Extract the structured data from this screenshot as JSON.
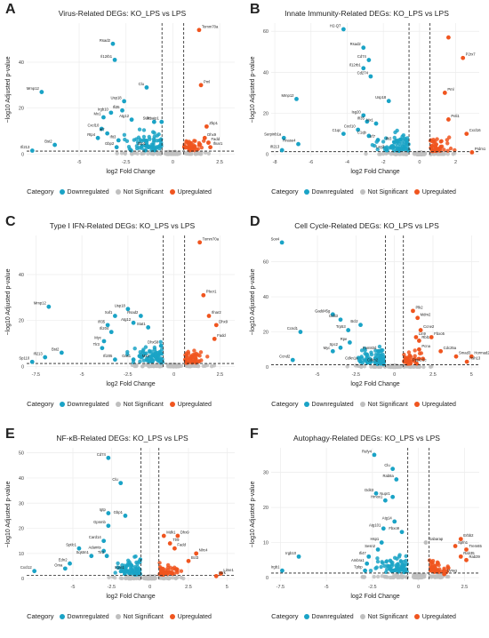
{
  "colors": {
    "down": "#1aa3c6",
    "ns": "#bfbfbf",
    "up": "#f0551f"
  },
  "legend": {
    "title": "Category",
    "items": [
      "Downregulated",
      "Not Significant",
      "Upregulated"
    ]
  },
  "chart_data": [
    {
      "label": "A",
      "type": "scatter",
      "title": "Virus-Related DEGs: KO_LPS vs LPS",
      "xlabel": "log2 Fold Change",
      "ylabel": "−log10 Adjusted p-value",
      "xlim": [
        -7.8,
        3.3
      ],
      "ylim": [
        -1,
        57
      ],
      "xticks": [
        -5,
        -2.5,
        0,
        2.5
      ],
      "yticks": [
        0,
        20,
        40
      ],
      "thresholds": {
        "x": [
          -0.58,
          0.58
        ],
        "y": 1.3
      },
      "labeled_points": [
        {
          "x": 1.4,
          "y": 54,
          "label": "Tomm70a",
          "cat": "up"
        },
        {
          "x": -3.2,
          "y": 48,
          "label": "Rsad2",
          "cat": "down"
        },
        {
          "x": -3.1,
          "y": 41,
          "label": "Il12rb1",
          "cat": "down"
        },
        {
          "x": 1.5,
          "y": 30,
          "label": "Pml",
          "cat": "up"
        },
        {
          "x": -7.0,
          "y": 27,
          "label": "Mmp12",
          "cat": "down"
        },
        {
          "x": -1.4,
          "y": 29,
          "label": "Clu",
          "cat": "down"
        },
        {
          "x": -2.6,
          "y": 23,
          "label": "Usp18",
          "cat": "down"
        },
        {
          "x": -2.7,
          "y": 19,
          "label": "Ifi35",
          "cat": "down"
        },
        {
          "x": -3.3,
          "y": 18,
          "label": "Irgb10",
          "cat": "down"
        },
        {
          "x": -2.2,
          "y": 15,
          "label": "Atg12",
          "cat": "down"
        },
        {
          "x": -3.7,
          "y": 16,
          "label": "Mx1",
          "cat": "down"
        },
        {
          "x": -1.0,
          "y": 14,
          "label": "Stat1",
          "cat": "down"
        },
        {
          "x": 1.8,
          "y": 12,
          "label": "Zbp1",
          "cat": "up"
        },
        {
          "x": -0.6,
          "y": 14,
          "label": "Pmaip1",
          "cat": "down"
        },
        {
          "x": -3.8,
          "y": 11,
          "label": "Cxcl10",
          "cat": "down"
        },
        {
          "x": -3.5,
          "y": 9,
          "label": "Irf7",
          "cat": "down"
        },
        {
          "x": -4.0,
          "y": 7,
          "label": "Rtp4",
          "cat": "down"
        },
        {
          "x": -2.9,
          "y": 6,
          "label": "Ifit3",
          "cat": "down"
        },
        {
          "x": 1.7,
          "y": 7,
          "label": "Dhx9",
          "cat": "up"
        },
        {
          "x": -6.3,
          "y": 4,
          "label": "Bst2",
          "cat": "down"
        },
        {
          "x": 1.9,
          "y": 5,
          "label": "Fadd",
          "cat": "up"
        },
        {
          "x": -3.0,
          "y": 3,
          "label": "Gbp2",
          "cat": "down"
        },
        {
          "x": -1.3,
          "y": 3,
          "label": "Zbp1",
          "cat": "down"
        },
        {
          "x": -7.5,
          "y": 1.5,
          "label": "Ifi213",
          "cat": "down"
        },
        {
          "x": 2.0,
          "y": 3,
          "label": "Ifnar1",
          "cat": "up"
        }
      ]
    },
    {
      "label": "B",
      "type": "scatter",
      "title": "Innate Immunity-Related DEGs: KO_LPS vs LPS",
      "xlabel": "log2 Fold Change",
      "ylabel": "−log10 Adjusted p-value",
      "xlim": [
        -8.2,
        3.3
      ],
      "ylim": [
        -1,
        64
      ],
      "xticks": [
        -8,
        -6,
        -4,
        -2,
        0,
        2
      ],
      "yticks": [
        0,
        20,
        40,
        60
      ],
      "thresholds": {
        "x": [
          -0.58,
          0.58
        ],
        "y": 1.3
      },
      "labeled_points": [
        {
          "x": -4.2,
          "y": 61,
          "label": "H2-Q7",
          "cat": "down"
        },
        {
          "x": 1.6,
          "y": 57,
          "label": "",
          "cat": "up"
        },
        {
          "x": 2.4,
          "y": 47,
          "label": "P2rx7",
          "cat": "up"
        },
        {
          "x": -3.1,
          "y": 52,
          "label": "Rsad2",
          "cat": "down"
        },
        {
          "x": -2.8,
          "y": 46,
          "label": "Cd74",
          "cat": "down"
        },
        {
          "x": -3.1,
          "y": 42,
          "label": "Il12rb1",
          "cat": "down"
        },
        {
          "x": -2.7,
          "y": 38,
          "label": "Cd274",
          "cat": "down"
        },
        {
          "x": 1.4,
          "y": 30,
          "label": "Pml",
          "cat": "up"
        },
        {
          "x": -6.8,
          "y": 27,
          "label": "Mmp12",
          "cat": "down"
        },
        {
          "x": -1.7,
          "y": 26,
          "label": "Usp18",
          "cat": "down"
        },
        {
          "x": 1.6,
          "y": 17,
          "label": "Peli1",
          "cat": "up"
        },
        {
          "x": -3.1,
          "y": 19,
          "label": "Isg20",
          "cat": "down"
        },
        {
          "x": -2.9,
          "y": 16,
          "label": "Ifi35",
          "cat": "down"
        },
        {
          "x": -2.4,
          "y": 15,
          "label": "Mx1",
          "cat": "down"
        },
        {
          "x": -3.4,
          "y": 12,
          "label": "Cxcl10",
          "cat": "down"
        },
        {
          "x": -4.2,
          "y": 10,
          "label": "C1qc",
          "cat": "down"
        },
        {
          "x": -2.8,
          "y": 9,
          "label": "C1qb",
          "cat": "down"
        },
        {
          "x": -2.3,
          "y": 7,
          "label": "Irf7",
          "cat": "down"
        },
        {
          "x": -1.4,
          "y": 6,
          "label": "Ifit3",
          "cat": "down"
        },
        {
          "x": -7.5,
          "y": 8,
          "label": "Serpinb1a",
          "cat": "down"
        },
        {
          "x": -6.7,
          "y": 5,
          "label": "Rnase4",
          "cat": "down"
        },
        {
          "x": -7.6,
          "y": 2,
          "label": "Ifi213",
          "cat": "down"
        },
        {
          "x": -1.8,
          "y": 2,
          "label": "Lag3",
          "cat": "down"
        },
        {
          "x": 2.6,
          "y": 10,
          "label": "Cxcl16",
          "cat": "up"
        },
        {
          "x": 2.9,
          "y": 1,
          "label": "Prdm1",
          "cat": "up"
        }
      ]
    },
    {
      "label": "C",
      "type": "scatter",
      "title": "Type I IFN-Related DEGs: KO_LPS vs LPS",
      "xlabel": "log2 Fold Change",
      "ylabel": "−log10 Adjusted p-value",
      "xlim": [
        -8.0,
        3.3
      ],
      "ylim": [
        -1,
        57
      ],
      "xticks": [
        -7.5,
        -5,
        -2.5,
        0,
        2.5
      ],
      "yticks": [
        0,
        20,
        40
      ],
      "thresholds": {
        "x": [
          -0.58,
          0.58
        ],
        "y": 1.3
      },
      "labeled_points": [
        {
          "x": 1.4,
          "y": 54,
          "label": "Tomm70a",
          "cat": "up"
        },
        {
          "x": -6.8,
          "y": 26,
          "label": "Mmp12",
          "cat": "down"
        },
        {
          "x": 1.6,
          "y": 31,
          "label": "Plscr1",
          "cat": "up"
        },
        {
          "x": -2.5,
          "y": 25,
          "label": "Usp18",
          "cat": "down"
        },
        {
          "x": -3.2,
          "y": 22,
          "label": "Xaf1",
          "cat": "down"
        },
        {
          "x": -1.8,
          "y": 22,
          "label": "Rsad2",
          "cat": "down"
        },
        {
          "x": -2.2,
          "y": 19,
          "label": "Atg12",
          "cat": "down"
        },
        {
          "x": -3.6,
          "y": 18,
          "label": "Ifi35",
          "cat": "down"
        },
        {
          "x": -3.4,
          "y": 15,
          "label": "Ifi204",
          "cat": "down"
        },
        {
          "x": -1.4,
          "y": 17,
          "label": "Stat1",
          "cat": "down"
        },
        {
          "x": 1.9,
          "y": 22,
          "label": "Ifnar2",
          "cat": "up"
        },
        {
          "x": 2.3,
          "y": 18,
          "label": "Dhx9",
          "cat": "up"
        },
        {
          "x": -0.7,
          "y": 9,
          "label": "Dhx58",
          "cat": "down"
        },
        {
          "x": -3.8,
          "y": 11,
          "label": "Myc",
          "cat": "down"
        },
        {
          "x": -3.9,
          "y": 8,
          "label": "Tlr3",
          "cat": "down"
        },
        {
          "x": 2.2,
          "y": 12,
          "label": "Fadd",
          "cat": "up"
        },
        {
          "x": -6.1,
          "y": 6,
          "label": "Bst2",
          "cat": "down"
        },
        {
          "x": -7.0,
          "y": 4,
          "label": "Ifi213",
          "cat": "down"
        },
        {
          "x": -7.7,
          "y": 2,
          "label": "Sp110",
          "cat": "down"
        },
        {
          "x": -3.2,
          "y": 3,
          "label": "Ifi205",
          "cat": "down"
        },
        {
          "x": -2.2,
          "y": 3,
          "label": "Oas1",
          "cat": "down"
        },
        {
          "x": -1.2,
          "y": 3,
          "label": "Mx2",
          "cat": "down"
        }
      ]
    },
    {
      "label": "D",
      "type": "scatter",
      "title": "Cell Cycle-Related DEGs: KO_LPS vs LPS",
      "xlabel": "log2 Fold Change",
      "ylabel": "−log10 Adjusted p-value",
      "xlim": [
        -8.0,
        5.5
      ],
      "ylim": [
        -1,
        75
      ],
      "xticks": [
        -5,
        -2.5,
        0,
        2.5,
        5
      ],
      "yticks": [
        0,
        20,
        40,
        60
      ],
      "thresholds": {
        "x": [
          -0.58,
          0.58
        ],
        "y": 1.3
      },
      "labeled_points": [
        {
          "x": -7.3,
          "y": 71,
          "label": "Sox4",
          "cat": "down"
        },
        {
          "x": -4.0,
          "y": 30,
          "label": "Gadd45g",
          "cat": "down"
        },
        {
          "x": -3.5,
          "y": 27,
          "label": "Ddit3",
          "cat": "down"
        },
        {
          "x": -6.1,
          "y": 20,
          "label": "Ccnd1",
          "cat": "down"
        },
        {
          "x": -3.0,
          "y": 21,
          "label": "Trp53",
          "cat": "down"
        },
        {
          "x": -2.2,
          "y": 24,
          "label": "Bcl2",
          "cat": "down"
        },
        {
          "x": 1.2,
          "y": 32,
          "label": "Plk2",
          "cat": "up"
        },
        {
          "x": 1.5,
          "y": 28,
          "label": "Mdm2",
          "cat": "up"
        },
        {
          "x": 1.7,
          "y": 21,
          "label": "Ccne2",
          "cat": "up"
        },
        {
          "x": 2.4,
          "y": 17,
          "label": "Fbxo5",
          "cat": "up"
        },
        {
          "x": 1.4,
          "y": 17,
          "label": "Lin9",
          "cat": "up"
        },
        {
          "x": 1.6,
          "y": 15,
          "label": "Rbl1",
          "cat": "up"
        },
        {
          "x": -2.9,
          "y": 14,
          "label": "Rpe",
          "cat": "down"
        },
        {
          "x": -3.5,
          "y": 11,
          "label": "Spc2",
          "cat": "down"
        },
        {
          "x": -4.0,
          "y": 9,
          "label": "Myc",
          "cat": "down"
        },
        {
          "x": -1.0,
          "y": 9,
          "label": "Fam83d",
          "cat": "down"
        },
        {
          "x": 1.6,
          "y": 10,
          "label": "Pcna",
          "cat": "up"
        },
        {
          "x": 3.0,
          "y": 9,
          "label": "Cdc25a",
          "cat": "up"
        },
        {
          "x": 4.0,
          "y": 6,
          "label": "Smad3",
          "cat": "up"
        },
        {
          "x": 5.0,
          "y": 6,
          "label": "Hormad2",
          "cat": "up"
        },
        {
          "x": 4.7,
          "y": 3,
          "label": "Hsh13",
          "cat": "up"
        },
        {
          "x": -6.6,
          "y": 4,
          "label": "Ccnd2",
          "cat": "down"
        },
        {
          "x": -2.2,
          "y": 3,
          "label": "Cdkn1a",
          "cat": "down"
        },
        {
          "x": -0.9,
          "y": 2,
          "label": "Cdkn2",
          "cat": "down"
        },
        {
          "x": 1.0,
          "y": 2,
          "label": "Ppp1r1c",
          "cat": "up"
        }
      ]
    },
    {
      "label": "E",
      "type": "scatter",
      "title": "NF-κB-Related DEGs: KO_LPS vs LPS",
      "xlabel": "log2 Fold Change",
      "ylabel": "−log10 Adjusted p-value",
      "xlim": [
        -8.0,
        5.5
      ],
      "ylim": [
        -1,
        52
      ],
      "xticks": [
        -5,
        -2.5,
        0,
        2.5,
        5
      ],
      "yticks": [
        0,
        10,
        20,
        30,
        40,
        50
      ],
      "thresholds": {
        "x": [
          -0.58,
          0.58
        ],
        "y": 1.3
      },
      "labeled_points": [
        {
          "x": -2.7,
          "y": 48,
          "label": "Cd74",
          "cat": "down"
        },
        {
          "x": -1.9,
          "y": 38,
          "label": "Clu",
          "cat": "down"
        },
        {
          "x": -2.7,
          "y": 26,
          "label": "Igtp",
          "cat": "down"
        },
        {
          "x": -1.6,
          "y": 25,
          "label": "Gbp1",
          "cat": "down"
        },
        {
          "x": -2.7,
          "y": 21,
          "label": "Gpnmb",
          "cat": "down"
        },
        {
          "x": -3.0,
          "y": 15,
          "label": "Card14",
          "cat": "down"
        },
        {
          "x": -4.6,
          "y": 12,
          "label": "Sptlc1",
          "cat": "down"
        },
        {
          "x": -3.0,
          "y": 11,
          "label": "Adamts",
          "cat": "down"
        },
        {
          "x": -3.8,
          "y": 9,
          "label": "Sqstm1",
          "cat": "down"
        },
        {
          "x": -2.8,
          "y": 9,
          "label": "Tlr2",
          "cat": "down"
        },
        {
          "x": 0.9,
          "y": 17,
          "label": "Mdk1",
          "cat": "up"
        },
        {
          "x": 1.8,
          "y": 17,
          "label": "Dhx9",
          "cat": "up"
        },
        {
          "x": 1.3,
          "y": 14,
          "label": "Tlr9",
          "cat": "up"
        },
        {
          "x": 1.6,
          "y": 12,
          "label": "Fadd",
          "cat": "up"
        },
        {
          "x": 3.0,
          "y": 10,
          "label": "Nlrc4",
          "cat": "up"
        },
        {
          "x": 2.5,
          "y": 7,
          "label": "Bcl3",
          "cat": "up"
        },
        {
          "x": -5.2,
          "y": 6,
          "label": "Edn2",
          "cat": "down"
        },
        {
          "x": -5.5,
          "y": 4,
          "label": "Oma",
          "cat": "down"
        },
        {
          "x": -7.5,
          "y": 3,
          "label": "Cxcl12",
          "cat": "down"
        },
        {
          "x": -1.5,
          "y": 3,
          "label": "Irgm1",
          "cat": "down"
        },
        {
          "x": 4.6,
          "y": 2,
          "label": "Lime1",
          "cat": "up"
        },
        {
          "x": 4.3,
          "y": 1,
          "label": "Ntrk",
          "cat": "up"
        }
      ]
    },
    {
      "label": "F",
      "type": "scatter",
      "title": "Autophagy-Related DEGs: KO_LPS vs LPS",
      "xlabel": "log2 Fold Change",
      "ylabel": "−log10 Adjusted p-value",
      "xlim": [
        -8.0,
        3.3
      ],
      "ylim": [
        -1,
        37
      ],
      "xticks": [
        -7.5,
        -5,
        -2.5,
        0,
        2.5
      ],
      "yticks": [
        0,
        10,
        20,
        30
      ],
      "thresholds": {
        "x": [
          -0.58,
          0.58
        ],
        "y": 1.3
      },
      "labeled_points": [
        {
          "x": -2.4,
          "y": 35,
          "label": "Rufy4",
          "cat": "down"
        },
        {
          "x": -1.4,
          "y": 31,
          "label": "Clu",
          "cat": "down"
        },
        {
          "x": -1.2,
          "y": 28,
          "label": "Rab8a",
          "cat": "down"
        },
        {
          "x": -2.3,
          "y": 24,
          "label": "Ddit3",
          "cat": "down"
        },
        {
          "x": -1.8,
          "y": 22,
          "label": "Hmox1",
          "cat": "down"
        },
        {
          "x": -1.4,
          "y": 23,
          "label": "Nupr1",
          "cat": "down"
        },
        {
          "x": -1.3,
          "y": 16,
          "label": "Atg14",
          "cat": "down"
        },
        {
          "x": -1.9,
          "y": 14,
          "label": "Atg101",
          "cat": "down"
        },
        {
          "x": -0.9,
          "y": 13,
          "label": "Fbxo9",
          "cat": "down"
        },
        {
          "x": 2.3,
          "y": 11,
          "label": "Erbb2",
          "cat": "up"
        },
        {
          "x": 2.0,
          "y": 9,
          "label": "Spfn1",
          "cat": "up"
        },
        {
          "x": 2.6,
          "y": 8,
          "label": "Trem65",
          "cat": "up"
        },
        {
          "x": 2.3,
          "y": 6,
          "label": "Rab35",
          "cat": "up"
        },
        {
          "x": 2.6,
          "y": 5,
          "label": "Rab39",
          "cat": "up"
        },
        {
          "x": -2.0,
          "y": 10,
          "label": "Hsp1",
          "cat": "down"
        },
        {
          "x": -2.2,
          "y": 8,
          "label": "Sesn2",
          "cat": "down"
        },
        {
          "x": -2.7,
          "y": 6,
          "label": "Ifi47",
          "cat": "down"
        },
        {
          "x": -2.8,
          "y": 4,
          "label": "Ambra1",
          "cat": "down"
        },
        {
          "x": -2.9,
          "y": 2,
          "label": "Tpbp",
          "cat": "down"
        },
        {
          "x": -6.5,
          "y": 6,
          "label": "Irgb10",
          "cat": "down"
        },
        {
          "x": -7.4,
          "y": 2,
          "label": "Irgb1",
          "cat": "down"
        },
        {
          "x": 0.4,
          "y": 10,
          "label": "Gabarap",
          "cat": "ns"
        },
        {
          "x": 1.4,
          "y": 1,
          "label": "Uvrag",
          "cat": "up"
        }
      ]
    }
  ]
}
